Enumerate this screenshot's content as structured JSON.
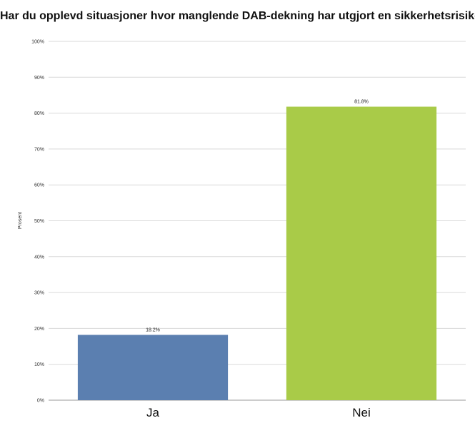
{
  "chart_data": {
    "type": "bar",
    "title": "Har du opplevd situasjoner hvor manglende DAB-dekning har utgjort en sikkerhetsrisiko?",
    "xlabel": "",
    "ylabel": "Prosent",
    "categories": [
      "Ja",
      "Nei"
    ],
    "values": [
      18.2,
      81.8
    ],
    "value_labels": [
      "18.2%",
      "81.8%"
    ],
    "bar_colors": [
      "#5b7fb0",
      "#a9cb48"
    ],
    "ylim": [
      0,
      100
    ],
    "yticks": [
      0,
      10,
      20,
      30,
      40,
      50,
      60,
      70,
      80,
      90,
      100
    ],
    "ytick_labels": [
      "0%",
      "10%",
      "20%",
      "30%",
      "40%",
      "50%",
      "60%",
      "70%",
      "80%",
      "90%",
      "100%"
    ],
    "grid": true,
    "legend": "none"
  }
}
